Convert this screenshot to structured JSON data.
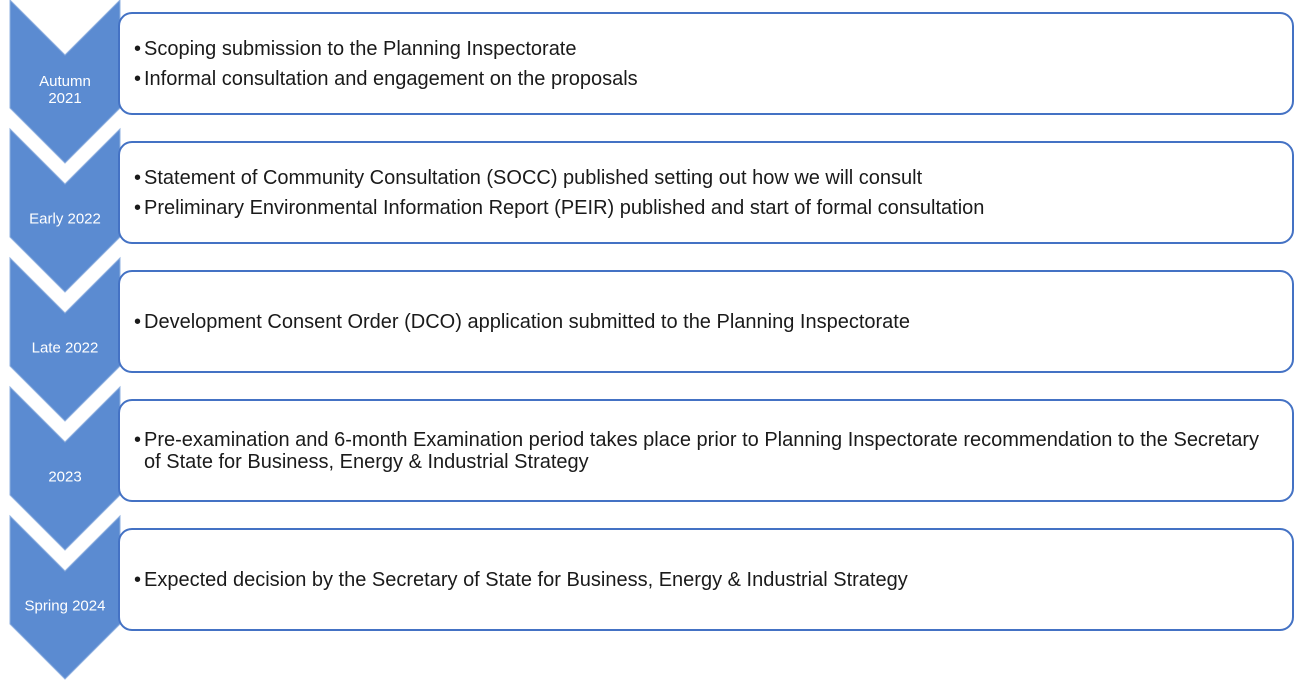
{
  "stages": [
    {
      "label": "Autumn 2021",
      "items": [
        "Scoping submission to the Planning Inspectorate",
        "Informal consultation and engagement on the proposals"
      ]
    },
    {
      "label": "Early 2022",
      "items": [
        "Statement of Community Consultation (SOCC) published setting out how we will consult",
        "Preliminary Environmental Information Report (PEIR) published and start of formal consultation"
      ]
    },
    {
      "label": "Late 2022",
      "items": [
        "Development Consent Order (DCO) application submitted to the Planning Inspectorate"
      ]
    },
    {
      "label": "2023",
      "items": [
        "Pre-examination and 6-month Examination period takes place prior to Planning Inspectorate recommendation to the Secretary of State for Business, Energy & Industrial Strategy"
      ]
    },
    {
      "label": "Spring 2024",
      "items": [
        "Expected decision by the Secretary of State for Business, Energy & Industrial Strategy"
      ]
    }
  ]
}
